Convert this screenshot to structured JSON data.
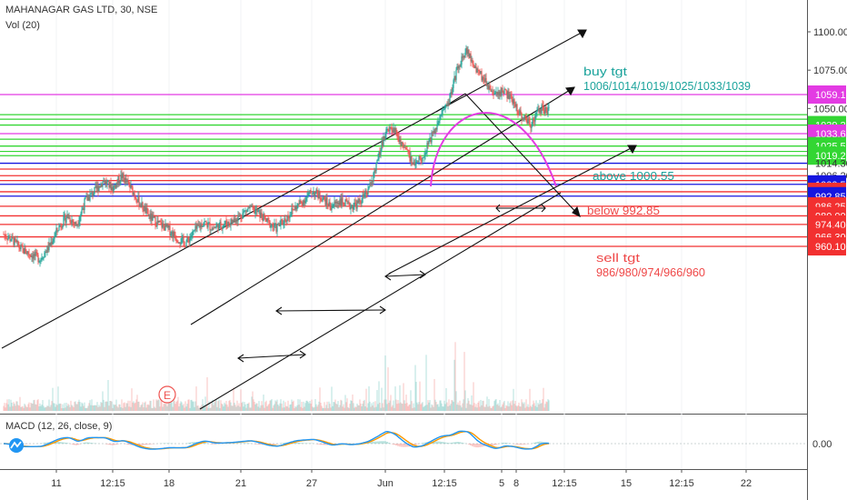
{
  "header": {
    "symbol_line": "MAHANAGAR GAS LTD, 30, NSE",
    "volume_label": "Vol (20)"
  },
  "macd_panel": {
    "label": "MACD (12, 26, close, 9)",
    "zero_label": "0.00"
  },
  "annotations": {
    "buy_title": "buy tgt",
    "buy_targets": "1006/1014/1019/1025/1033/1039",
    "above": "above 1000.55",
    "below": "below 992.85",
    "sell_title": "sell tgt",
    "sell_targets": "986/980/974/966/960"
  },
  "colors": {
    "magenta": "#e33be3",
    "green": "#33d633",
    "red": "#f23030",
    "blue": "#1616e0",
    "teal_text": "#1ba39c",
    "red_text": "#ef4848",
    "up_candle": "#26a69a",
    "down_candle": "#ef5350",
    "macd_line": "#2196f3",
    "signal_line": "#ff9800"
  },
  "chart_data": {
    "type": "candlestick",
    "title": "MAHANAGAR GAS LTD, 30, NSE",
    "y_axis_ticks": [
      1100.0,
      1075.0,
      1050.0
    ],
    "x_axis_labels": [
      "11",
      "12:15",
      "18",
      "21",
      "27",
      "Jun",
      "12:15",
      "5",
      "8",
      "12:15",
      "15",
      "12:15",
      "22"
    ],
    "price_levels": [
      {
        "label": "1059.10",
        "value": 1059.1,
        "color": "magenta",
        "badge": true
      },
      {
        "label": "1039.20",
        "value": 1039.2,
        "color": "green",
        "badge": true
      },
      {
        "label": "1033.60",
        "value": 1033.6,
        "color": "magenta",
        "badge": true
      },
      {
        "label": "1025.50",
        "value": 1025.5,
        "color": "green",
        "badge": true
      },
      {
        "label": "1019.25",
        "value": 1019.25,
        "color": "green",
        "badge": true
      },
      {
        "label": "1014.30",
        "value": 1014.3,
        "color": "blue",
        "badge": false
      },
      {
        "label": "1006.20",
        "value": 1006.2,
        "color": "red",
        "badge": false
      },
      {
        "label": "1000.55",
        "value": 1000.55,
        "color": "blue",
        "badge": true
      },
      {
        "label": "995.70",
        "value": 995.7,
        "color": "red",
        "badge": true
      },
      {
        "label": "992.85",
        "value": 992.85,
        "color": "blue",
        "badge": true
      },
      {
        "label": "986.25",
        "value": 986.25,
        "color": "red",
        "badge": true
      },
      {
        "label": "980.00",
        "value": 980.0,
        "color": "red",
        "badge": true
      },
      {
        "label": "974.40",
        "value": 974.4,
        "color": "red",
        "badge": true
      },
      {
        "label": "966.30",
        "value": 966.3,
        "color": "red",
        "badge": true
      },
      {
        "label": "960.10",
        "value": 960.1,
        "color": "red",
        "badge": true
      }
    ],
    "extra_green_levels": [
      1046.0,
      1043.0,
      1030.0,
      1022.0
    ],
    "extra_red_levels": [
      1010.5,
      1003.0
    ],
    "earnings_marker": "E",
    "price_path": [
      [
        0,
        968
      ],
      [
        10,
        964
      ],
      [
        20,
        958
      ],
      [
        30,
        955
      ],
      [
        40,
        952
      ],
      [
        50,
        960
      ],
      [
        60,
        972
      ],
      [
        70,
        980
      ],
      [
        80,
        974
      ],
      [
        90,
        990
      ],
      [
        100,
        996
      ],
      [
        110,
        1003
      ],
      [
        120,
        998
      ],
      [
        130,
        1006
      ],
      [
        140,
        998
      ],
      [
        150,
        988
      ],
      [
        160,
        980
      ],
      [
        170,
        975
      ],
      [
        180,
        972
      ],
      [
        190,
        966
      ],
      [
        200,
        962
      ],
      [
        210,
        970
      ],
      [
        220,
        976
      ],
      [
        230,
        972
      ],
      [
        240,
        974
      ],
      [
        250,
        976
      ],
      [
        260,
        980
      ],
      [
        270,
        985
      ],
      [
        280,
        982
      ],
      [
        290,
        976
      ],
      [
        300,
        972
      ],
      [
        310,
        978
      ],
      [
        320,
        985
      ],
      [
        330,
        990
      ],
      [
        340,
        996
      ],
      [
        350,
        992
      ],
      [
        360,
        986
      ],
      [
        370,
        990
      ],
      [
        380,
        986
      ],
      [
        390,
        988
      ],
      [
        400,
        995
      ],
      [
        410,
        1012
      ],
      [
        420,
        1035
      ],
      [
        430,
        1036
      ],
      [
        440,
        1025
      ],
      [
        450,
        1015
      ],
      [
        460,
        1018
      ],
      [
        470,
        1030
      ],
      [
        480,
        1045
      ],
      [
        490,
        1055
      ],
      [
        500,
        1078
      ],
      [
        510,
        1088
      ],
      [
        520,
        1075
      ],
      [
        530,
        1068
      ],
      [
        540,
        1058
      ],
      [
        550,
        1062
      ],
      [
        560,
        1055
      ],
      [
        570,
        1045
      ],
      [
        580,
        1040
      ],
      [
        590,
        1050
      ],
      [
        600,
        1048
      ]
    ]
  }
}
